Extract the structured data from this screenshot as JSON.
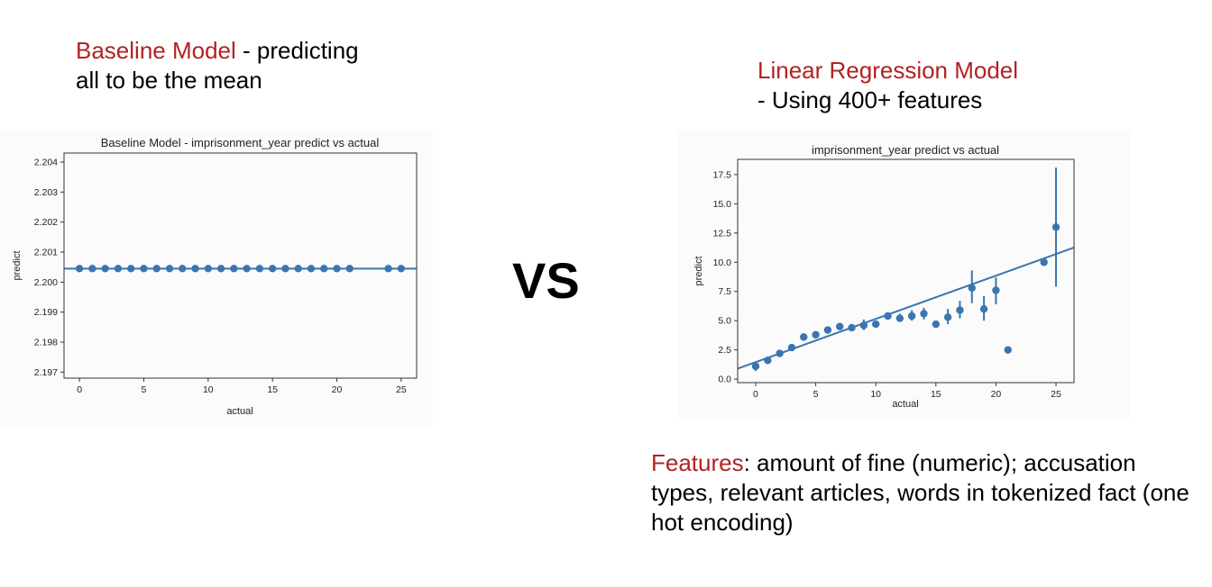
{
  "left_caption": {
    "title": "Baseline Model",
    "rest": " - predicting all to be the mean"
  },
  "right_caption": {
    "title": "Linear Regression Model",
    "rest": "- Using 400+ features"
  },
  "vs_label": "VS",
  "features_text": {
    "label": "Features",
    "rest": ": amount of fine (numeric); accusation types, relevant articles, words in tokenized fact (one hot encoding)"
  },
  "colors": {
    "accent_red": "#b22222",
    "series_blue": "#3a75b0"
  },
  "chart_data": [
    {
      "type": "scatter",
      "title": "Baseline Model - imprisonment_year predict vs actual",
      "xlabel": "actual",
      "ylabel": "predict",
      "xlim": [
        -1.2,
        26.2
      ],
      "ylim": [
        2.1968,
        2.2043
      ],
      "xticks": [
        0,
        5,
        10,
        15,
        20,
        25
      ],
      "yticks": [
        2.197,
        2.198,
        2.199,
        2.2,
        2.201,
        2.202,
        2.203,
        2.204
      ],
      "ytick_labels": [
        "2.197",
        "2.198",
        "2.199",
        "2.200",
        "2.201",
        "2.202",
        "2.203",
        "2.204"
      ],
      "x": [
        0,
        1,
        2,
        3,
        4,
        5,
        6,
        7,
        8,
        9,
        10,
        11,
        12,
        13,
        14,
        15,
        16,
        17,
        18,
        19,
        20,
        21,
        24,
        25
      ],
      "y": [
        2.20045,
        2.20045,
        2.20045,
        2.20045,
        2.20045,
        2.20045,
        2.20045,
        2.20045,
        2.20045,
        2.20045,
        2.20045,
        2.20045,
        2.20045,
        2.20045,
        2.20045,
        2.20045,
        2.20045,
        2.20045,
        2.20045,
        2.20045,
        2.20045,
        2.20045,
        2.20045,
        2.20045
      ],
      "fit_line": {
        "intercept": 2.20045,
        "slope": 0
      }
    },
    {
      "type": "scatter",
      "title": "imprisonment_year predict vs actual",
      "xlabel": "actual",
      "ylabel": "predict",
      "xlim": [
        -1.5,
        26.5
      ],
      "ylim": [
        -0.3,
        18.8
      ],
      "xticks": [
        0,
        5,
        10,
        15,
        20,
        25
      ],
      "yticks": [
        0,
        2.5,
        5,
        7.5,
        10,
        12.5,
        15,
        17.5
      ],
      "ytick_labels": [
        "0.0",
        "2.5",
        "5.0",
        "7.5",
        "10.0",
        "12.5",
        "15.0",
        "17.5"
      ],
      "x": [
        0,
        1,
        2,
        3,
        4,
        5,
        6,
        7,
        8,
        9,
        10,
        11,
        12,
        13,
        14,
        15,
        16,
        17,
        18,
        19,
        20,
        21,
        24,
        25
      ],
      "y": [
        1.1,
        1.6,
        2.2,
        2.7,
        3.6,
        3.8,
        4.2,
        4.5,
        4.4,
        4.6,
        4.7,
        5.4,
        5.2,
        5.4,
        5.6,
        4.7,
        5.3,
        5.9,
        7.8,
        6.0,
        7.6,
        2.5,
        10.0,
        13.0
      ],
      "y_err_low": [
        0.7,
        1.3,
        2.0,
        2.5,
        3.5,
        3.7,
        4.1,
        4.4,
        4.3,
        4.2,
        4.5,
        5.1,
        4.9,
        5.0,
        5.1,
        4.4,
        4.7,
        5.2,
        6.5,
        5.0,
        6.4,
        2.5,
        9.9,
        7.9
      ],
      "y_err_high": [
        1.5,
        1.9,
        2.4,
        2.9,
        3.7,
        3.9,
        4.3,
        4.6,
        4.5,
        5.1,
        4.9,
        5.7,
        5.6,
        5.9,
        6.1,
        5.0,
        6.0,
        6.7,
        9.3,
        7.1,
        8.7,
        2.5,
        10.1,
        18.1
      ],
      "fit_line": {
        "intercept": 1.45,
        "slope": 0.37
      }
    }
  ]
}
